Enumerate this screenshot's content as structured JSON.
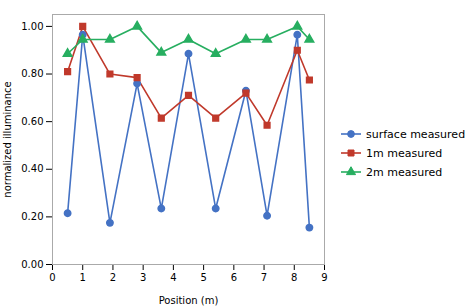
{
  "chart_data": {
    "type": "line",
    "xlabel": "Position (m)",
    "ylabel": "normalized illuminance",
    "xlim": [
      0,
      9
    ],
    "ylim": [
      0.0,
      1.05
    ],
    "xticks": [
      0,
      1,
      2,
      3,
      4,
      5,
      6,
      7,
      8,
      9
    ],
    "yticks": [
      {
        "value": 0.0,
        "label": "0.00"
      },
      {
        "value": 0.2,
        "label": "0.20"
      },
      {
        "value": 0.4,
        "label": "0.40"
      },
      {
        "value": 0.6,
        "label": "0.60"
      },
      {
        "value": 0.8,
        "label": "0.80"
      },
      {
        "value": 1.0,
        "label": "1.00"
      }
    ],
    "grid": false,
    "legend": "right",
    "x": [
      0.5,
      1.0,
      1.9,
      2.8,
      3.6,
      4.5,
      5.4,
      6.4,
      7.1,
      8.1,
      8.5
    ],
    "series": [
      {
        "name": "surface measured",
        "color": "#4472c4",
        "marker": "circle",
        "values": [
          0.215,
          0.965,
          0.175,
          0.76,
          0.235,
          0.885,
          0.235,
          0.73,
          0.205,
          0.965,
          0.155
        ]
      },
      {
        "name": "1m measured",
        "color": "#c0392b",
        "marker": "square",
        "values": [
          0.81,
          1.0,
          0.8,
          0.785,
          0.615,
          0.71,
          0.615,
          0.72,
          0.585,
          0.9,
          0.775
        ]
      },
      {
        "name": "2m measured",
        "color": "#27ae60",
        "marker": "triangle",
        "values": [
          0.885,
          0.945,
          0.945,
          1.0,
          0.89,
          0.945,
          0.885,
          0.945,
          0.945,
          1.0,
          0.945
        ]
      }
    ]
  }
}
